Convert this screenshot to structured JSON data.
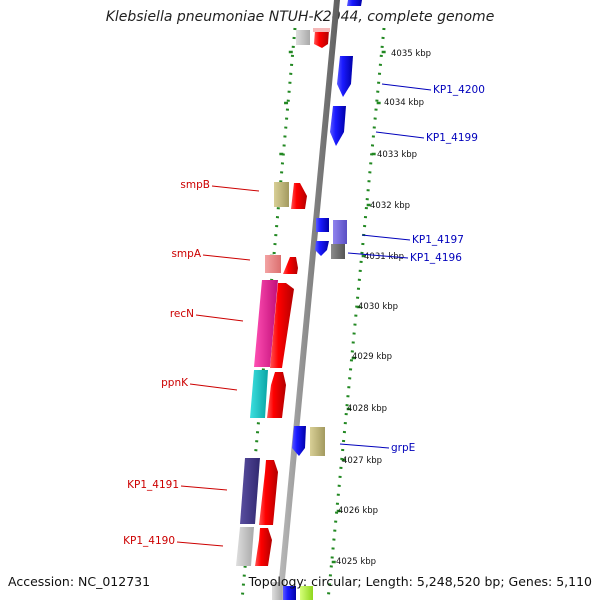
{
  "title": "Klebsiella pneumoniae NTUH-K2044, complete genome",
  "footer": {
    "accession": "Accession: NC_012731",
    "topology": "Topology: circular; Length: 5,248,520 bp; Genes: 5,110"
  },
  "kbp_ticks": [
    "4035 kbp",
    "4034 kbp",
    "4033 kbp",
    "4032 kbp",
    "4031 kbp",
    "4030 kbp",
    "4029 kbp",
    "4028 kbp",
    "4027 kbp",
    "4026 kbp",
    "4025 kbp"
  ],
  "genes_left": [
    {
      "label": "smpB"
    },
    {
      "label": "smpA"
    },
    {
      "label": "recN"
    },
    {
      "label": "ppnK"
    },
    {
      "label": "KP1_4191"
    },
    {
      "label": "KP1_4190"
    }
  ],
  "genes_right": [
    {
      "label": "KP1_4200"
    },
    {
      "label": "KP1_4199"
    },
    {
      "label": "KP1_4197"
    },
    {
      "label": "KP1_4196"
    },
    {
      "label": "grpE"
    }
  ],
  "colors": {
    "forward_gene": "#ee1111",
    "reverse_gene": "#1111dd",
    "left_label": "#cc0000",
    "right_label": "#0000bb",
    "dotted_track": "#228822",
    "backbone": "#8a8a8a"
  }
}
